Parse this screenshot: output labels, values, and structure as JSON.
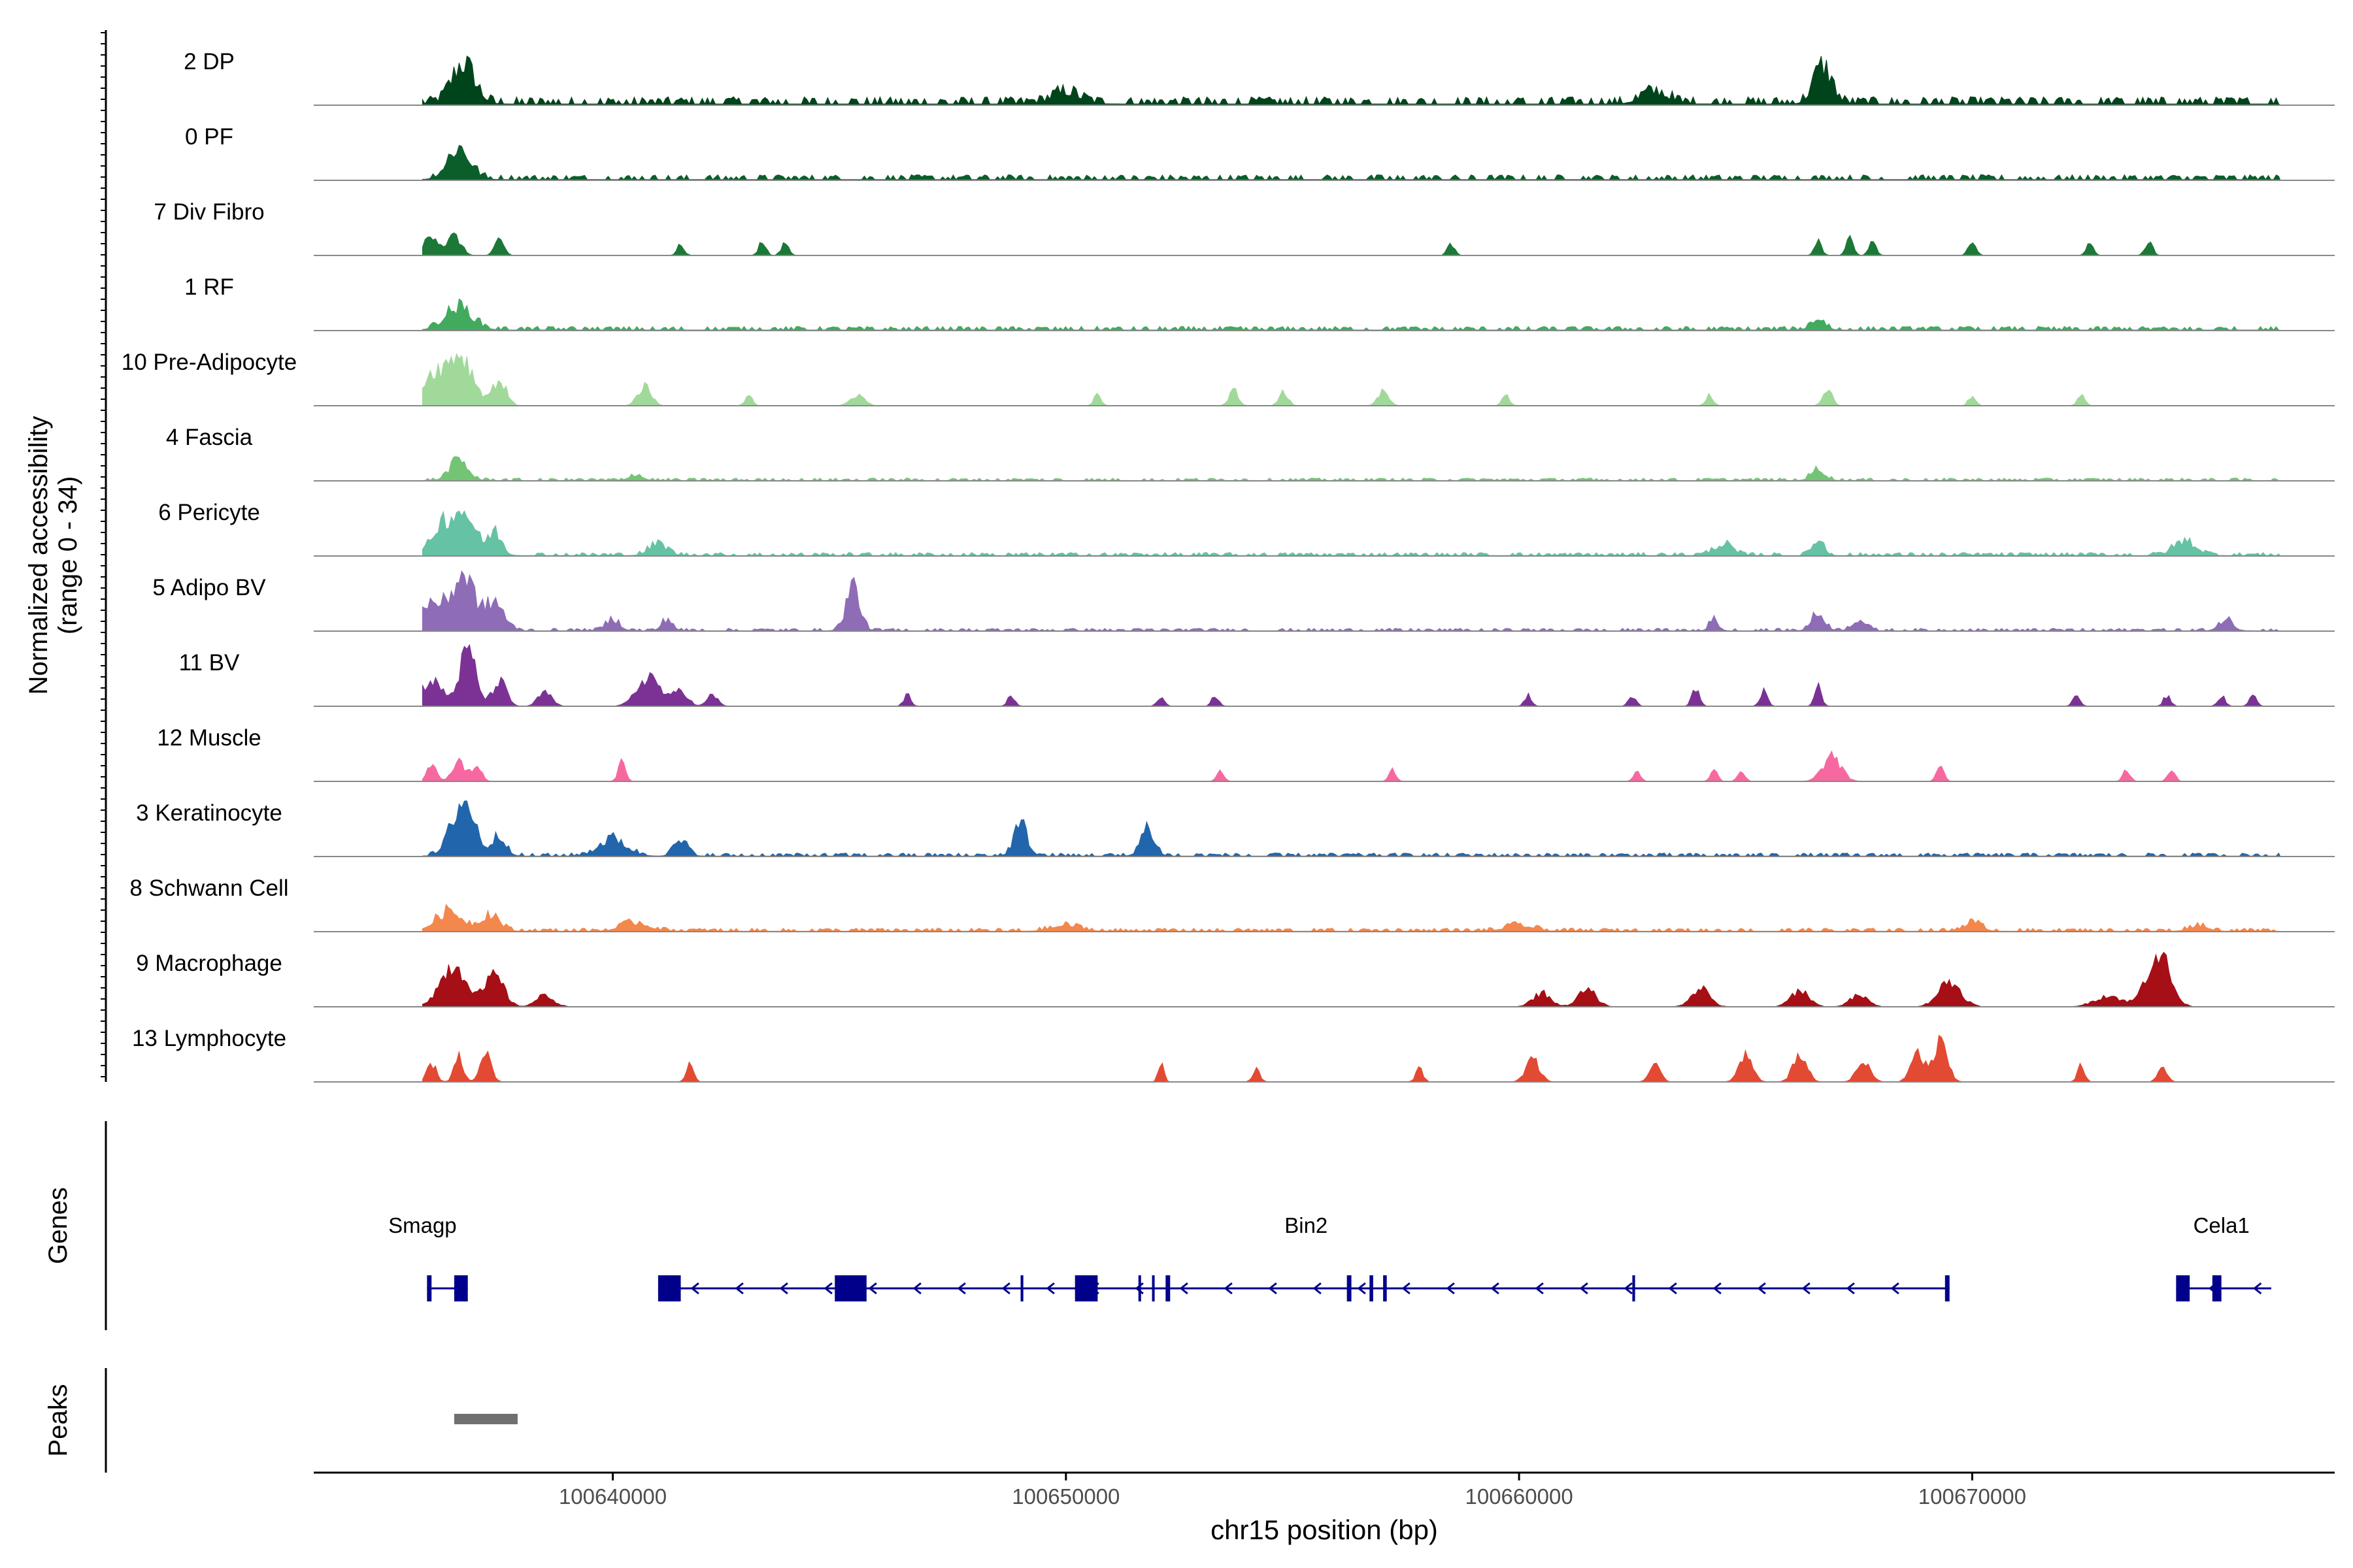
{
  "chart_data": {
    "type": "area",
    "title": "",
    "region": "chr15",
    "xlabel": "chr15 position (bp)",
    "x_range": [
      100633400,
      100678000
    ],
    "x_ticks": [
      100640000,
      100650000,
      100660000,
      100670000
    ],
    "x_tick_labels": [
      "100640000",
      "100650000",
      "100660000",
      "100670000"
    ],
    "ylabel_line1": "Normalized accessibility",
    "ylabel_line2": "(range 0 - 34)",
    "y_range": [
      0,
      34
    ],
    "genes_label": "Genes",
    "peaks_label": "Peaks",
    "tracks": [
      {
        "name": "2 DP",
        "color": "#00441B",
        "level": 0.12,
        "peaks": [
          [
            100636700,
            0.7,
            250
          ],
          [
            100666700,
            0.65,
            200
          ],
          [
            100663000,
            0.2,
            300
          ],
          [
            100650000,
            0.2,
            300
          ]
        ]
      },
      {
        "name": "0 PF",
        "color": "#0B5E2A",
        "level": 0.08,
        "peaks": [
          [
            100636600,
            0.55,
            250
          ]
        ]
      },
      {
        "name": "7 Div Fibro",
        "color": "#1B7837",
        "level": 0.0,
        "peaks": [
          [
            100636000,
            0.4,
            150
          ],
          [
            100636500,
            0.35,
            150
          ],
          [
            100637500,
            0.3,
            100
          ],
          [
            100641500,
            0.2,
            80
          ],
          [
            100643300,
            0.25,
            80
          ],
          [
            100643800,
            0.25,
            80
          ],
          [
            100658500,
            0.2,
            80
          ],
          [
            100666600,
            0.25,
            80
          ],
          [
            100667300,
            0.3,
            80
          ],
          [
            100667800,
            0.25,
            80
          ],
          [
            100670000,
            0.3,
            80
          ],
          [
            100672600,
            0.2,
            80
          ],
          [
            100673900,
            0.3,
            80
          ]
        ]
      },
      {
        "name": "1 RF",
        "color": "#41AB5D",
        "level": 0.06,
        "peaks": [
          [
            100636600,
            0.4,
            300
          ],
          [
            100666600,
            0.2,
            150
          ]
        ]
      },
      {
        "name": "10 Pre-Adipocyte",
        "color": "#A1D99B",
        "level": 0.0,
        "peaks": [
          [
            100636000,
            0.5,
            200
          ],
          [
            100636600,
            0.95,
            300
          ],
          [
            100637500,
            0.45,
            150
          ],
          [
            100640700,
            0.35,
            150
          ],
          [
            100643000,
            0.2,
            80
          ],
          [
            100645400,
            0.2,
            150
          ],
          [
            100650700,
            0.2,
            80
          ],
          [
            100653700,
            0.3,
            100
          ],
          [
            100654800,
            0.25,
            100
          ],
          [
            100657000,
            0.25,
            120
          ],
          [
            100659700,
            0.2,
            80
          ],
          [
            100664200,
            0.2,
            80
          ],
          [
            100666800,
            0.3,
            100
          ],
          [
            100672400,
            0.2,
            80
          ],
          [
            100670000,
            0.2,
            80
          ]
        ]
      },
      {
        "name": "4 Fascia",
        "color": "#74C476",
        "level": 0.04,
        "peaks": [
          [
            100636600,
            0.35,
            200
          ],
          [
            100640500,
            0.1,
            150
          ],
          [
            100666600,
            0.2,
            150
          ]
        ]
      },
      {
        "name": "6 Pericyte",
        "color": "#66C2A5",
        "level": 0.05,
        "peaks": [
          [
            100636200,
            0.5,
            200
          ],
          [
            100636700,
            0.8,
            250
          ],
          [
            100637400,
            0.4,
            150
          ],
          [
            100641000,
            0.2,
            200
          ],
          [
            100664500,
            0.2,
            200
          ],
          [
            100666600,
            0.3,
            120
          ],
          [
            100674700,
            0.25,
            250
          ]
        ]
      },
      {
        "name": "5 Adipo BV",
        "color": "#8E6CB6",
        "level": 0.04,
        "peaks": [
          [
            100636000,
            0.5,
            250
          ],
          [
            100636700,
            1.0,
            250
          ],
          [
            100637400,
            0.5,
            200
          ],
          [
            100645300,
            0.8,
            150
          ],
          [
            100640000,
            0.2,
            150
          ],
          [
            100641200,
            0.2,
            120
          ],
          [
            100666600,
            0.3,
            150
          ],
          [
            100667500,
            0.2,
            150
          ],
          [
            100664300,
            0.2,
            100
          ],
          [
            100675600,
            0.2,
            150
          ]
        ]
      },
      {
        "name": "11 BV",
        "color": "#7B3294",
        "level": 0.0,
        "peaks": [
          [
            100636000,
            0.45,
            250
          ],
          [
            100636800,
            1.0,
            180
          ],
          [
            100637500,
            0.45,
            150
          ],
          [
            100638500,
            0.25,
            150
          ],
          [
            100640800,
            0.55,
            250
          ],
          [
            100641500,
            0.3,
            150
          ],
          [
            100642200,
            0.2,
            120
          ],
          [
            100646500,
            0.2,
            80
          ],
          [
            100648800,
            0.2,
            80
          ],
          [
            100652100,
            0.2,
            80
          ],
          [
            100653300,
            0.2,
            80
          ],
          [
            100660200,
            0.2,
            80
          ],
          [
            100662500,
            0.2,
            80
          ],
          [
            100663900,
            0.35,
            80
          ],
          [
            100665400,
            0.3,
            80
          ],
          [
            100666600,
            0.35,
            80
          ],
          [
            100672300,
            0.2,
            80
          ],
          [
            100674300,
            0.2,
            80
          ],
          [
            100675500,
            0.2,
            80
          ],
          [
            100676200,
            0.2,
            80
          ]
        ]
      },
      {
        "name": "12 Muscle",
        "color": "#F768A1",
        "level": 0.0,
        "peaks": [
          [
            100636000,
            0.3,
            100
          ],
          [
            100636600,
            0.35,
            150
          ],
          [
            100637000,
            0.3,
            100
          ],
          [
            100640200,
            0.35,
            80
          ],
          [
            100653400,
            0.2,
            80
          ],
          [
            100657200,
            0.2,
            80
          ],
          [
            100662600,
            0.2,
            80
          ],
          [
            100664300,
            0.2,
            80
          ],
          [
            100664900,
            0.2,
            80
          ],
          [
            100666900,
            0.45,
            200
          ],
          [
            100669300,
            0.3,
            80
          ],
          [
            100673400,
            0.2,
            80
          ],
          [
            100674400,
            0.2,
            80
          ]
        ]
      },
      {
        "name": "3 Keratinocyte",
        "color": "#2166AC",
        "level": 0.05,
        "peaks": [
          [
            100636700,
            1.0,
            250
          ],
          [
            100637500,
            0.35,
            150
          ],
          [
            100640000,
            0.3,
            300
          ],
          [
            100641500,
            0.25,
            150
          ],
          [
            100649000,
            0.55,
            150
          ],
          [
            100651800,
            0.5,
            150
          ]
        ]
      },
      {
        "name": "8 Schwann Cell",
        "color": "#F4874B",
        "level": 0.05,
        "peaks": [
          [
            100636400,
            0.35,
            300
          ],
          [
            100637300,
            0.3,
            200
          ],
          [
            100640500,
            0.15,
            300
          ],
          [
            100650000,
            0.1,
            300
          ],
          [
            100660000,
            0.1,
            300
          ],
          [
            100670000,
            0.15,
            200
          ],
          [
            100675000,
            0.1,
            200
          ]
        ]
      },
      {
        "name": "9 Macrophage",
        "color": "#A50F15",
        "level": 0.0,
        "peaks": [
          [
            100636500,
            0.75,
            300
          ],
          [
            100637400,
            0.55,
            200
          ],
          [
            100638500,
            0.2,
            200
          ],
          [
            100660500,
            0.25,
            200
          ],
          [
            100661500,
            0.3,
            200
          ],
          [
            100664000,
            0.35,
            200
          ],
          [
            100666200,
            0.3,
            200
          ],
          [
            100667500,
            0.2,
            200
          ],
          [
            100669500,
            0.45,
            250
          ],
          [
            100674100,
            1.0,
            250
          ],
          [
            100673000,
            0.2,
            300
          ]
        ]
      },
      {
        "name": "13 Lymphocyte",
        "color": "#E34A33",
        "level": 0.0,
        "peaks": [
          [
            100636000,
            0.35,
            100
          ],
          [
            100636600,
            0.45,
            100
          ],
          [
            100637200,
            0.5,
            120
          ],
          [
            100641700,
            0.3,
            80
          ],
          [
            100652100,
            0.35,
            60
          ],
          [
            100654200,
            0.25,
            80
          ],
          [
            100657800,
            0.25,
            80
          ],
          [
            100660300,
            0.4,
            150
          ],
          [
            100663000,
            0.3,
            120
          ],
          [
            100665000,
            0.45,
            150
          ],
          [
            100666200,
            0.5,
            150
          ],
          [
            100667600,
            0.35,
            150
          ],
          [
            100668800,
            0.5,
            150
          ],
          [
            100669300,
            0.7,
            150
          ],
          [
            100672400,
            0.3,
            80
          ],
          [
            100674200,
            0.3,
            100
          ]
        ]
      }
    ],
    "genes": [
      {
        "name": "Smagp",
        "label_pos": 100635800,
        "strand": "-",
        "start": 100635900,
        "end": 100636800,
        "exons": [
          [
            100635900,
            100636000
          ],
          [
            100636500,
            100636800
          ]
        ]
      },
      {
        "name": "Bin2",
        "label_pos": 100655300,
        "strand": "-",
        "start": 100641000,
        "end": 100669500,
        "exons": [
          [
            100641000,
            100641500
          ],
          [
            100644900,
            100645600
          ],
          [
            100649000,
            100649060
          ],
          [
            100650200,
            100650700
          ],
          [
            100651600,
            100651650
          ],
          [
            100651900,
            100651950
          ],
          [
            100652200,
            100652300
          ],
          [
            100656200,
            100656300
          ],
          [
            100656700,
            100656780
          ],
          [
            100657000,
            100657080
          ],
          [
            100662500,
            100662560
          ],
          [
            100669400,
            100669500
          ]
        ]
      },
      {
        "name": "Cela1",
        "label_pos": 100675500,
        "strand": "-",
        "start": 100674500,
        "end": 100676600,
        "exons": [
          [
            100674500,
            100674800
          ],
          [
            100675300,
            100675500
          ]
        ]
      }
    ],
    "peak_regions": [
      [
        100636500,
        100637900
      ]
    ]
  }
}
